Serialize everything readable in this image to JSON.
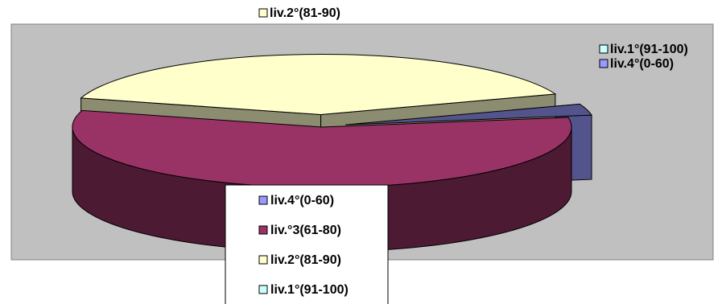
{
  "chart_data": {
    "type": "pie3d",
    "categories": [
      "liv.4°(0-60)",
      "liv.°3(61-80)",
      "liv.2°(81-90)",
      "liv.1°(91-100)"
    ],
    "values": [
      3,
      57,
      40,
      0
    ],
    "colors": [
      "#9999ff",
      "#993366",
      "#ffffcc",
      "#ccffff"
    ],
    "legend": "bottom"
  }
}
